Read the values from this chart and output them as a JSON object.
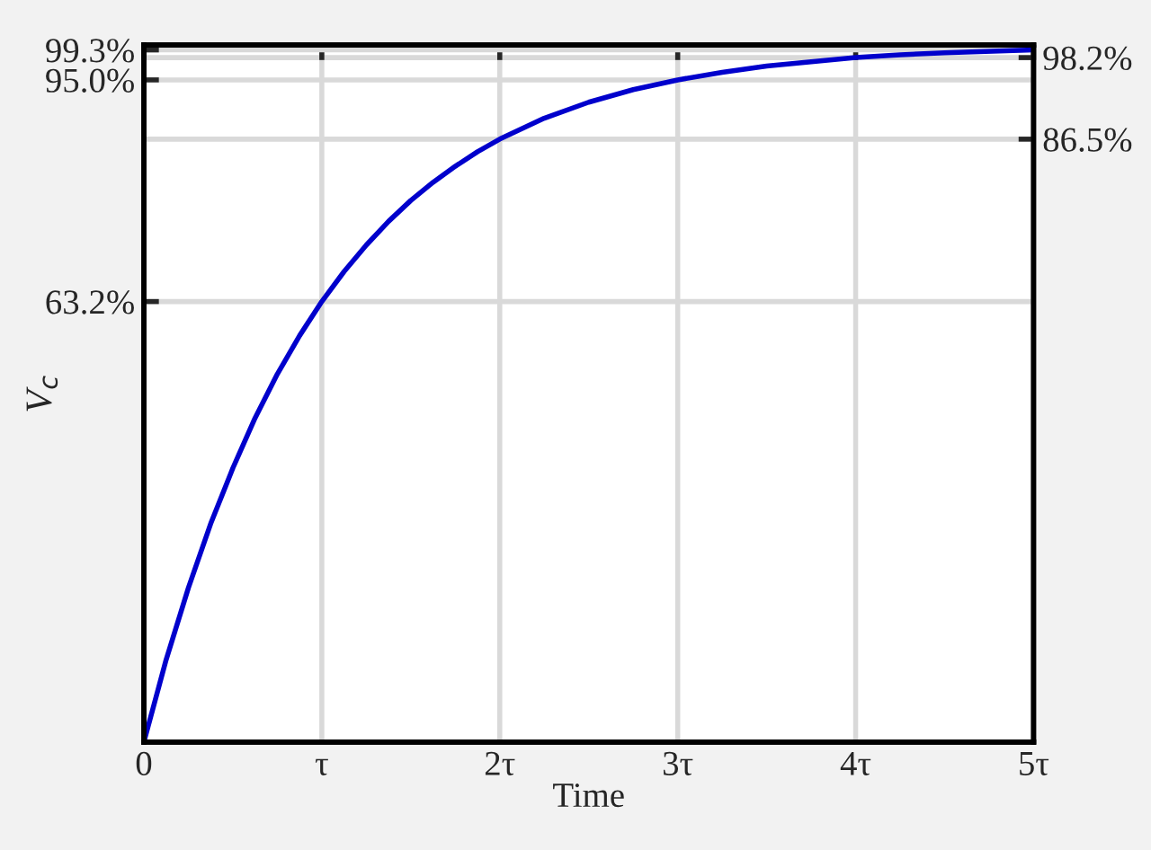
{
  "chart_data": {
    "type": "line",
    "xlabel": "Time",
    "ylabel": "V$_{c}$",
    "x": [
      0,
      0.125,
      0.25,
      0.375,
      0.5,
      0.625,
      0.75,
      0.875,
      1,
      1.125,
      1.25,
      1.375,
      1.5,
      1.625,
      1.75,
      1.875,
      2,
      2.25,
      2.5,
      2.75,
      3,
      3.25,
      3.5,
      3.75,
      4,
      4.25,
      4.5,
      5
    ],
    "series": [
      {
        "color": "#0000cc",
        "values": [
          0,
          11.8,
          22.1,
          31.3,
          39.3,
          46.5,
          52.8,
          58.3,
          63.2,
          67.5,
          71.3,
          74.7,
          77.7,
          80.3,
          82.6,
          84.7,
          86.5,
          89.5,
          91.8,
          93.6,
          95.0,
          96.1,
          97.0,
          97.6,
          98.2,
          98.6,
          98.9,
          99.3
        ]
      }
    ],
    "xlim": [
      0,
      5
    ],
    "xticks": [
      0,
      {
        "value": 1,
        "label": "τ"
      },
      {
        "value": 2,
        "label": "2τ"
      },
      {
        "value": 3,
        "label": "3τ"
      },
      {
        "value": 4,
        "label": "4τ"
      },
      {
        "value": 5,
        "label": "5τ"
      }
    ],
    "ylim": [
      0,
      100
    ],
    "yticks": [
      {
        "value": 63.2,
        "label": "63.2%"
      },
      {
        "value": 95.0,
        "label": "95.0%"
      },
      {
        "value": 99.3,
        "label": "99.3%"
      }
    ],
    "y2lim": [
      0,
      100
    ],
    "y2ticks": [
      {
        "value": 86.5,
        "label": "86.5%"
      },
      {
        "value": 98.2,
        "label": "98.2%"
      }
    ],
    "grid": true,
    "marker": "none",
    "line_style": "solid"
  }
}
